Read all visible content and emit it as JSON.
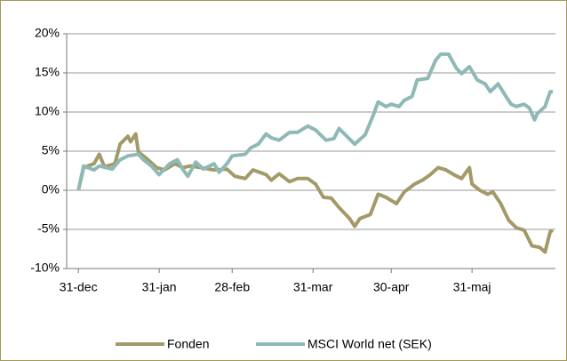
{
  "chart_data": {
    "type": "line",
    "series": [
      {
        "name": "Fonden",
        "color": "#a39a69",
        "x": [
          0,
          2,
          6,
          8,
          10,
          14,
          16,
          19,
          20,
          22,
          23,
          26,
          30,
          33,
          37,
          40,
          43,
          47,
          52,
          57,
          60,
          64,
          67,
          72,
          74,
          77,
          81,
          84,
          88,
          91,
          94,
          97,
          100,
          104,
          106,
          108,
          112,
          115,
          118,
          122,
          125,
          129,
          132,
          135,
          138,
          141,
          144,
          147,
          150,
          151,
          154,
          157,
          159,
          162,
          165,
          168,
          171,
          174,
          177,
          179,
          181,
          182
        ],
        "values": [
          0,
          2.9,
          3.4,
          4.6,
          3.0,
          3.4,
          5.9,
          6.9,
          6.2,
          7.2,
          4.9,
          4.1,
          2.9,
          2.6,
          3.4,
          2.9,
          3.1,
          2.9,
          2.6,
          2.7,
          1.8,
          1.5,
          2.6,
          2.0,
          1.3,
          2.1,
          1.1,
          1.5,
          1.5,
          0.8,
          -0.9,
          -1.0,
          -2.2,
          -3.6,
          -4.6,
          -3.6,
          -3.1,
          -0.5,
          -0.9,
          -1.7,
          -0.2,
          0.8,
          1.3,
          2.0,
          2.9,
          2.6,
          2.0,
          1.5,
          2.9,
          0.8,
          0,
          -0.5,
          -0.2,
          -1.7,
          -3.8,
          -4.8,
          -5.1,
          -7.1,
          -7.3,
          -7.9,
          -5.3,
          -5.1
        ]
      },
      {
        "name": "MSCI World net (SEK)",
        "color": "#8fb9b6",
        "x": [
          0,
          2,
          6,
          8,
          13,
          16,
          19,
          23,
          25,
          28,
          31,
          35,
          38,
          40,
          42,
          45,
          48,
          52,
          54,
          57,
          59,
          64,
          66,
          69,
          72,
          74,
          77,
          81,
          84,
          88,
          91,
          95,
          98,
          100,
          103,
          106,
          110,
          113,
          115,
          118,
          120,
          123,
          125,
          128,
          130,
          134,
          137,
          139,
          142,
          145,
          147,
          150,
          153,
          156,
          158,
          161,
          164,
          166,
          168,
          171,
          173,
          175,
          176,
          179,
          181,
          182
        ],
        "values": [
          0,
          3.1,
          2.6,
          3.1,
          2.7,
          3.9,
          4.4,
          4.6,
          3.9,
          3.1,
          2.0,
          3.4,
          3.9,
          2.7,
          1.8,
          3.6,
          2.7,
          3.4,
          2.3,
          3.4,
          4.4,
          4.6,
          5.4,
          5.9,
          7.2,
          6.7,
          6.4,
          7.4,
          7.4,
          8.2,
          7.7,
          6.4,
          6.6,
          7.9,
          6.9,
          5.9,
          7.1,
          9.5,
          11.3,
          10.7,
          11.0,
          10.7,
          11.5,
          12.0,
          14.1,
          14.3,
          16.6,
          17.4,
          17.4,
          15.6,
          14.9,
          15.8,
          14.1,
          13.6,
          12.6,
          13.6,
          12.0,
          11.0,
          10.7,
          11.0,
          10.5,
          9.0,
          9.8,
          10.7,
          12.6,
          12.6
        ]
      }
    ],
    "xlim": [
      -4.5,
      183
    ],
    "xticks": [
      {
        "value": 0,
        "label": "31-dec"
      },
      {
        "value": 31,
        "label": "31-jan"
      },
      {
        "value": 59,
        "label": "28-feb"
      },
      {
        "value": 90,
        "label": "31-mar"
      },
      {
        "value": 120,
        "label": "30-apr"
      },
      {
        "value": 151,
        "label": "31-maj"
      }
    ],
    "ylim": [
      -10,
      20
    ],
    "yticks": [
      {
        "value": -10,
        "label": "-10%"
      },
      {
        "value": -5,
        "label": "-5%"
      },
      {
        "value": 0,
        "label": "0%"
      },
      {
        "value": 5,
        "label": "5%"
      },
      {
        "value": 10,
        "label": "10%"
      },
      {
        "value": 15,
        "label": "15%"
      },
      {
        "value": 20,
        "label": "20%"
      }
    ],
    "grid": true
  }
}
